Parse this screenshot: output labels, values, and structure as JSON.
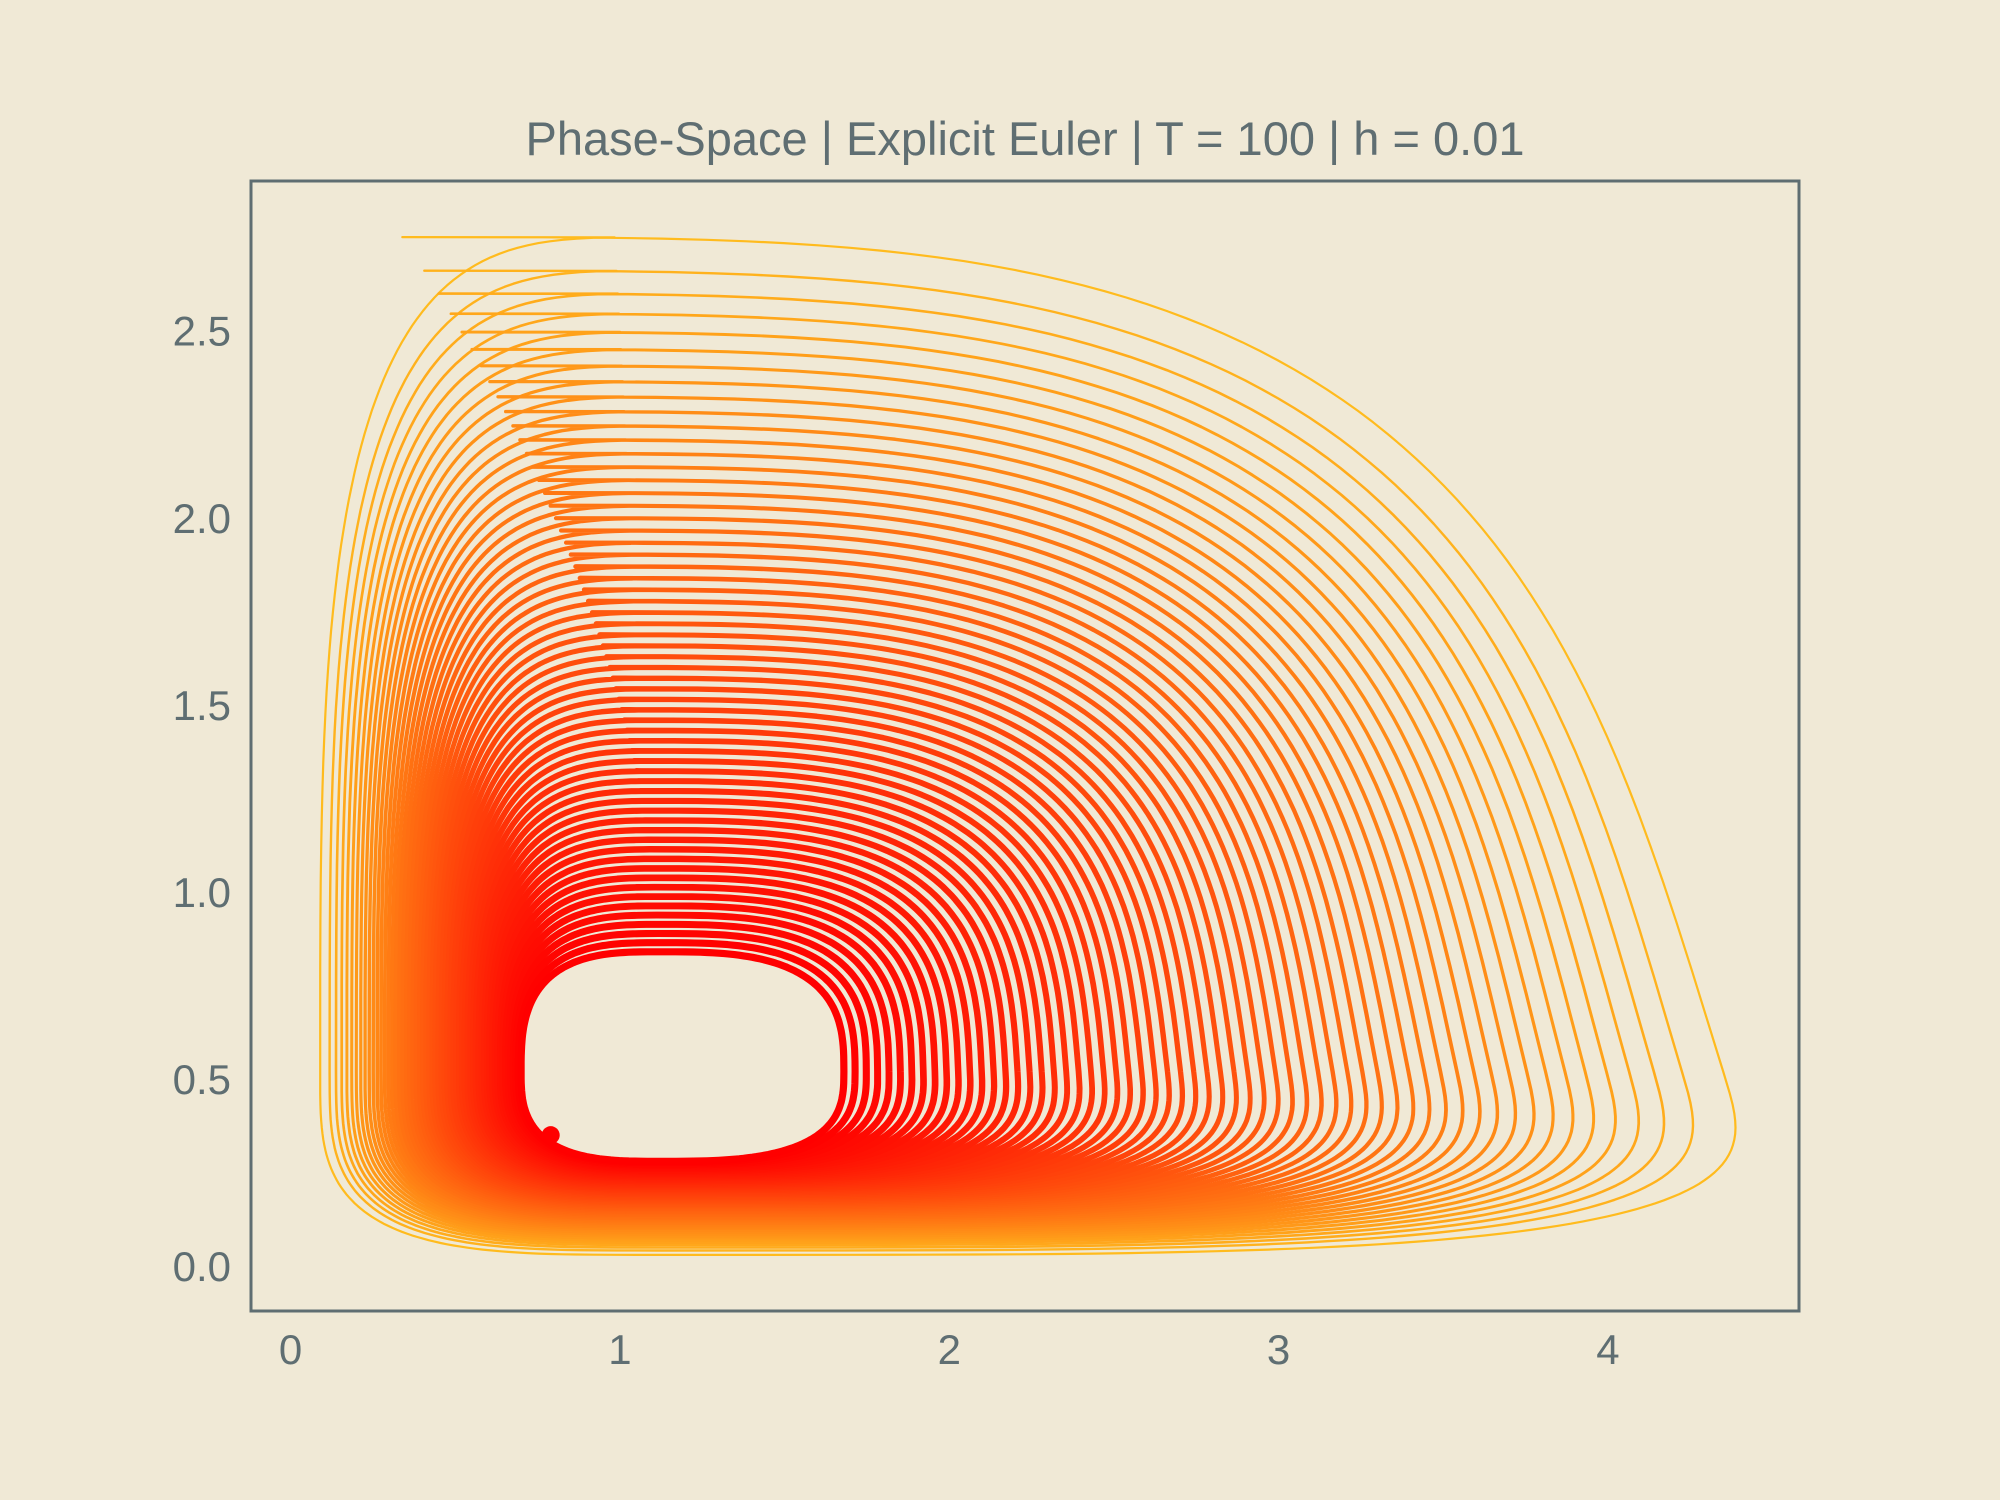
{
  "chart_data": {
    "type": "line",
    "title": "Phase-Space | Explicit Euler | T = 100 | h = 0.01",
    "xlabel": "",
    "ylabel": "",
    "xlim": [
      -0.12,
      4.58
    ],
    "ylim": [
      -0.12,
      2.9
    ],
    "x_ticks": [
      "0",
      "1",
      "2",
      "3",
      "4"
    ],
    "y_ticks": [
      "0.0",
      "0.5",
      "1.0",
      "1.5",
      "2.0",
      "2.5"
    ],
    "x_tick_values": [
      0,
      1,
      2,
      3,
      4
    ],
    "y_tick_values": [
      0.0,
      0.5,
      1.0,
      1.5,
      2.0,
      2.5
    ],
    "grid": false,
    "legend": "none",
    "series": [
      {
        "description_values": "orbit spiral parameters",
        "start_point": [
          1.62,
          2.42
        ],
        "end_point": [
          0.79,
          0.35
        ],
        "center": [
          1.12,
          0.52
        ],
        "outer_extent": {
          "x_min": 0.09,
          "x_max": 4.35,
          "y_min": 0.03,
          "y_max": 2.75
        },
        "inner_extent": {
          "x_min": 0.7,
          "x_max": 1.68,
          "y_min": 0.28,
          "y_max": 0.84
        },
        "orbits": 60
      }
    ],
    "colors": {
      "background": "#f0e9d6",
      "axis": "#5f6e72",
      "start_color": "#ffbb1e",
      "end_color": "#ff0000"
    }
  }
}
